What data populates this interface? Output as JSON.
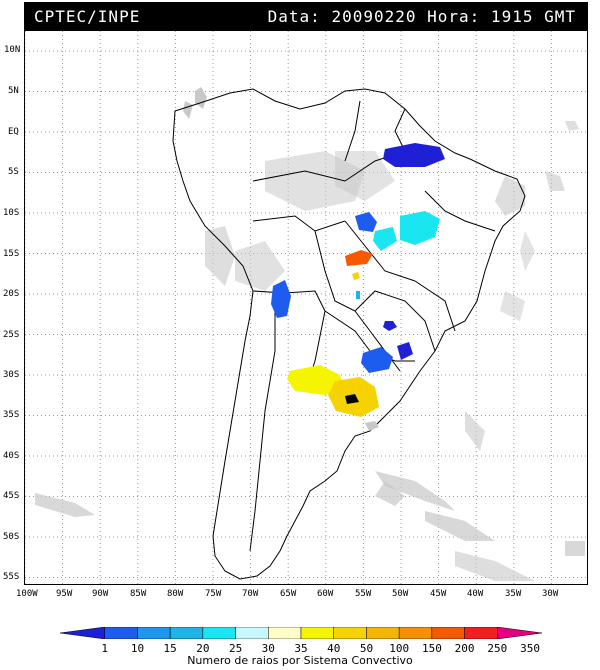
{
  "header": {
    "source": "CPTEC/INPE",
    "datetime": "Data: 20090220 Hora: 1915 GMT"
  },
  "map": {
    "lat_labels": [
      "10N",
      "5N",
      "EQ",
      "5S",
      "10S",
      "15S",
      "20S",
      "25S",
      "30S",
      "35S",
      "40S",
      "45S",
      "50S",
      "55S"
    ],
    "lon_labels": [
      "100W",
      "95W",
      "90W",
      "85W",
      "80W",
      "75W",
      "70W",
      "65W",
      "60W",
      "55W",
      "50W",
      "45W",
      "40W",
      "35W",
      "30W"
    ],
    "land_fill": "#ffffff",
    "coast_color": "#000000",
    "cloud_color": "#c8c8c8"
  },
  "colorbar": {
    "labels": [
      "1",
      "10",
      "15",
      "20",
      "25",
      "30",
      "35",
      "40",
      "50",
      "100",
      "150",
      "200",
      "250",
      "350"
    ],
    "colors": [
      "#1f1fd6",
      "#1e5cf0",
      "#1e96f0",
      "#1eb4e6",
      "#19e6f0",
      "#c8f8ff",
      "#ffffc8",
      "#f5f500",
      "#f5d200",
      "#f5b400",
      "#f59100",
      "#f55a00",
      "#f51e1e",
      "#e60080"
    ],
    "caption": "Numero de raios por Sistema Convectivo"
  }
}
